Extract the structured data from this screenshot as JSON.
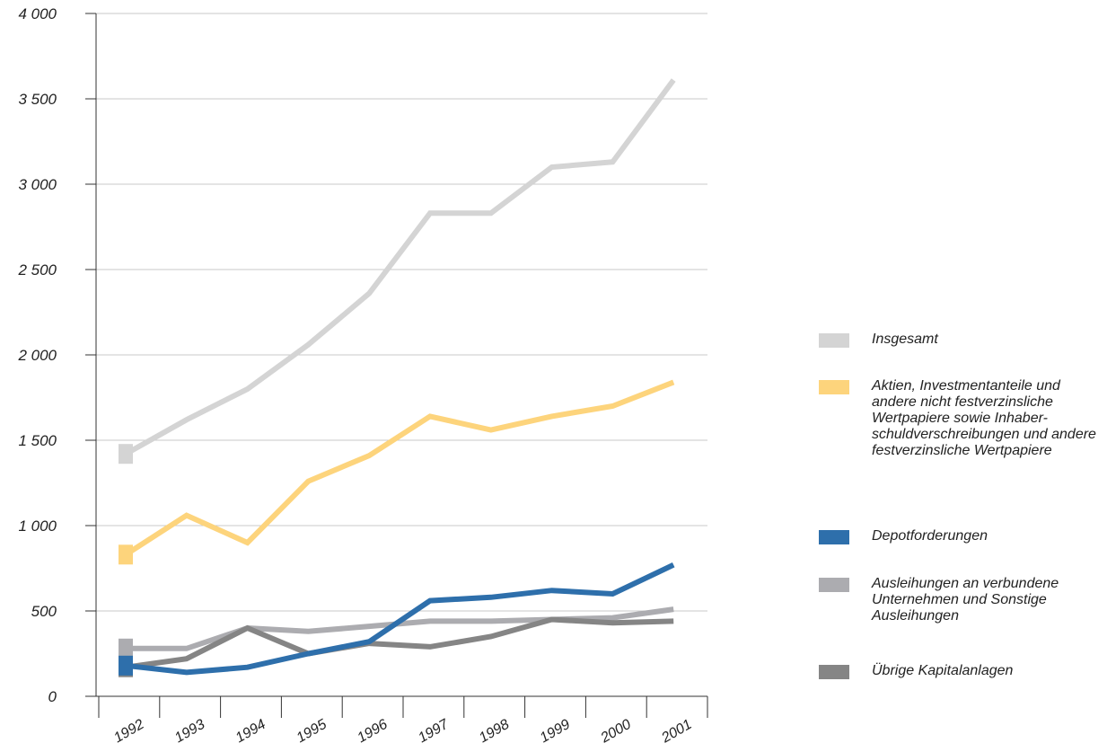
{
  "chart_data": {
    "type": "line",
    "title": "",
    "xlabel": "",
    "ylabel": "",
    "categories": [
      "1992",
      "1993",
      "1994",
      "1995",
      "1996",
      "1997",
      "1998",
      "1999",
      "2000",
      "2001"
    ],
    "ylim": [
      0,
      4000
    ],
    "yticks": [
      0,
      500,
      1000,
      1500,
      2000,
      2500,
      3000,
      3500,
      4000
    ],
    "ytick_labels": [
      "0",
      "500",
      "1 000",
      "1 500",
      "2 000",
      "2 500",
      "3 000",
      "3 500",
      "4 000"
    ],
    "grid": true,
    "legend_position": "right",
    "series": [
      {
        "name": "Insgesamt",
        "color": "#d4d4d4",
        "values": [
          1420,
          1620,
          1800,
          2060,
          2360,
          2830,
          2830,
          3100,
          3130,
          3610
        ]
      },
      {
        "name": "Aktien, Investmentanteile und andere nicht festverzinsliche Wertpapiere sowie Inhaber-schuldverschreibungen und andere festverzinsliche Wertpapiere",
        "color": "#fdd47c",
        "values": [
          830,
          1060,
          900,
          1260,
          1410,
          1640,
          1560,
          1640,
          1700,
          1840
        ]
      },
      {
        "name": "Depotforderungen",
        "color": "#2e6fab",
        "values": [
          180,
          140,
          170,
          250,
          320,
          560,
          580,
          620,
          600,
          770
        ]
      },
      {
        "name": "Ausleihungen an verbundene Unternehmen und Sonstige Ausleihungen",
        "color": "#acacb0",
        "values": [
          280,
          280,
          400,
          380,
          410,
          440,
          440,
          450,
          460,
          510
        ]
      },
      {
        "name": "Übrige Kapitalanlagen",
        "color": "#858585",
        "values": [
          170,
          220,
          400,
          250,
          310,
          290,
          350,
          450,
          430,
          440
        ]
      }
    ]
  },
  "legend": {
    "items": [
      {
        "label": "Insgesamt",
        "color": "#d4d4d4"
      },
      {
        "label": "Aktien, Investmentanteile und andere nicht festverzinsliche Wertpapiere sowie Inhaber-schuldverschreibungen und andere festverzinsliche Wertpapiere",
        "color": "#fdd47c"
      },
      {
        "label": "Depotforderungen",
        "color": "#2e6fab"
      },
      {
        "label": "Ausleihungen an verbundene Unternehmen und Sonstige Ausleihungen",
        "color": "#acacb0"
      },
      {
        "label": "Übrige Kapitalanlagen",
        "color": "#858585"
      }
    ]
  }
}
